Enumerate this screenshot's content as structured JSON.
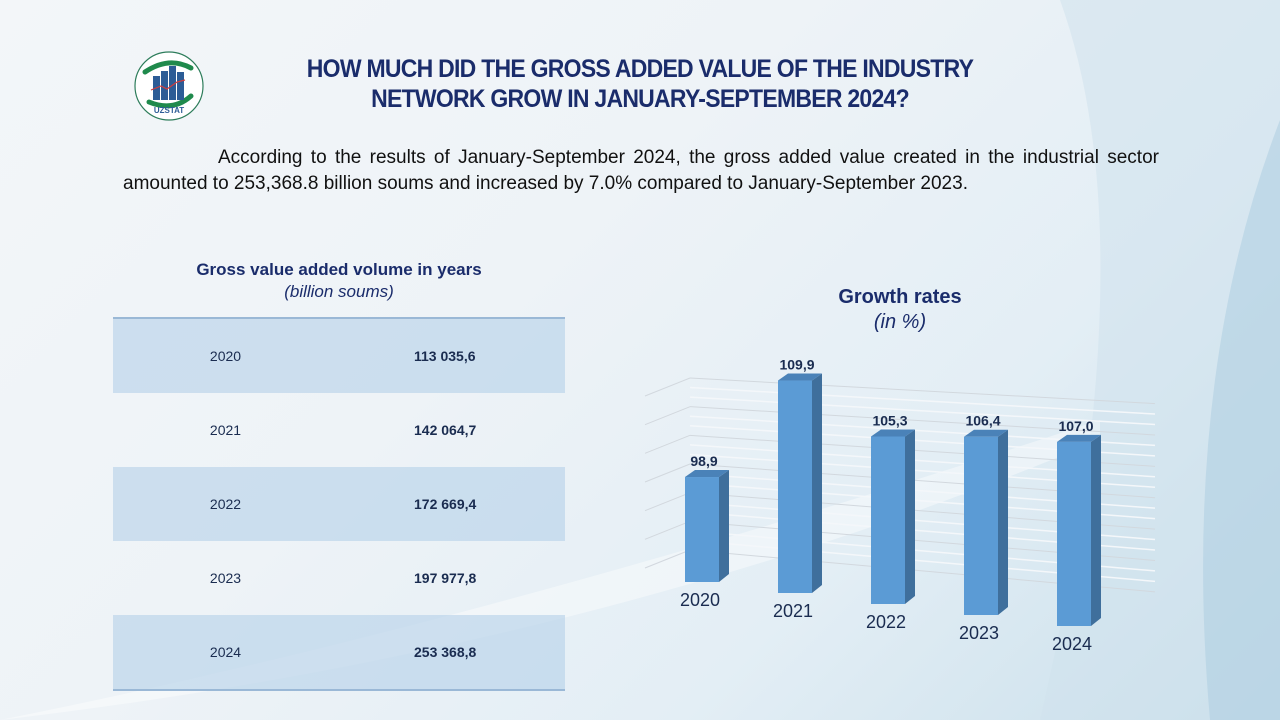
{
  "header": {
    "logo_text": "UZSTAT",
    "title_line1": "HOW MUCH DID THE GROSS ADDED VALUE OF THE INDUSTRY",
    "title_line2": "NETWORK GROW IN JANUARY-SEPTEMBER 2024?"
  },
  "intro": "According to the results of January-September 2024, the gross added value created in the industrial sector amounted to 253,368.8 billion soums and increased by 7.0% compared to January-September 2023.",
  "table": {
    "title": "Gross value added volume in years",
    "subtitle": "(billion soums)",
    "rows": [
      {
        "year": "2020",
        "value": "113 035,6"
      },
      {
        "year": "2021",
        "value": "142 064,7"
      },
      {
        "year": "2022",
        "value": "172 669,4"
      },
      {
        "year": "2023",
        "value": "197 977,8"
      },
      {
        "year": "2024",
        "value": "253 368,8"
      }
    ]
  },
  "colors": {
    "title": "#1a2c6b",
    "bar_front": "#5b9bd5",
    "bar_side": "#3f6f9c",
    "bar_top": "#4a82b8",
    "table_shade": "#c4d9eb"
  },
  "chart_data": {
    "type": "bar",
    "title": "Growth rates",
    "subtitle": "(in %)",
    "categories": [
      "2020",
      "2021",
      "2022",
      "2023",
      "2024"
    ],
    "values": [
      98.9,
      109.9,
      105.3,
      106.4,
      107.0
    ],
    "value_labels": [
      "98,9",
      "109,9",
      "105,3",
      "106,4",
      "107,0"
    ],
    "xlabel": "",
    "ylabel": "",
    "ylim": [
      90,
      112
    ],
    "grid": true,
    "style": "3d-column",
    "legend": "none"
  }
}
